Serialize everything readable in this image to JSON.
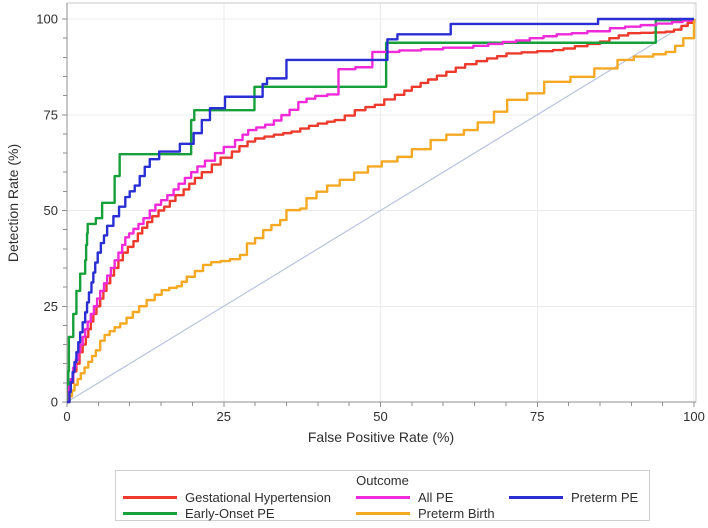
{
  "chart_data": {
    "type": "line",
    "subtype": "roc-step-curves",
    "title": "",
    "xlabel": "False Positive Rate (%)",
    "ylabel": "Detection Rate (%)",
    "xlim": [
      0,
      100
    ],
    "ylim": [
      0,
      100
    ],
    "x_ticks": [
      0,
      25,
      50,
      75,
      100
    ],
    "y_ticks": [
      0,
      25,
      50,
      75,
      100
    ],
    "minor_tick_step": 5,
    "grid": "major",
    "legend": {
      "title": "Outcome",
      "position": "bottom"
    },
    "reference_line": {
      "name": "chance-diagonal",
      "from": [
        0,
        0
      ],
      "to": [
        100,
        100
      ],
      "color": "#b9c3de"
    },
    "series": [
      {
        "name": "Gestational Hypertension",
        "color": "#ee3a2c",
        "points": [
          [
            0,
            0
          ],
          [
            0.3,
            3
          ],
          [
            0.6,
            5
          ],
          [
            1,
            8
          ],
          [
            1.5,
            10
          ],
          [
            2,
            13
          ],
          [
            2.5,
            15
          ],
          [
            3,
            17
          ],
          [
            3.4,
            19
          ],
          [
            3.8,
            21
          ],
          [
            4.2,
            23
          ],
          [
            4.7,
            25
          ],
          [
            5.3,
            27
          ],
          [
            5.8,
            29
          ],
          [
            6.3,
            31
          ],
          [
            6.9,
            33
          ],
          [
            7.5,
            35
          ],
          [
            8.2,
            37
          ],
          [
            8.9,
            39
          ],
          [
            9.7,
            40.5
          ],
          [
            10.6,
            42
          ],
          [
            11.3,
            44
          ],
          [
            12,
            45.5
          ],
          [
            12.8,
            47
          ],
          [
            13.6,
            48.5
          ],
          [
            14.6,
            50
          ],
          [
            15.5,
            51
          ],
          [
            16.4,
            52.5
          ],
          [
            17.3,
            54
          ],
          [
            18.6,
            55.5
          ],
          [
            19.5,
            57
          ],
          [
            20.4,
            58.5
          ],
          [
            21.5,
            60
          ],
          [
            23.1,
            62
          ],
          [
            24.5,
            63.8
          ],
          [
            26.3,
            65.4
          ],
          [
            27.5,
            66.8
          ],
          [
            28.8,
            68
          ],
          [
            30,
            68.8
          ],
          [
            31.5,
            69.3
          ],
          [
            33,
            69.8
          ],
          [
            34.5,
            70.2
          ],
          [
            35.8,
            70.6
          ],
          [
            37.2,
            71.4
          ],
          [
            38.6,
            72.1
          ],
          [
            40,
            72.7
          ],
          [
            41.5,
            73.2
          ],
          [
            42.7,
            73.6
          ],
          [
            44.3,
            74.8
          ],
          [
            45.9,
            76.2
          ],
          [
            47.6,
            77
          ],
          [
            49.1,
            77.6
          ],
          [
            50.6,
            79
          ],
          [
            52.3,
            80.2
          ],
          [
            53.8,
            81.3
          ],
          [
            55,
            82.3
          ],
          [
            56.4,
            83.3
          ],
          [
            57.6,
            84.2
          ],
          [
            59,
            85.2
          ],
          [
            60.5,
            86.2
          ],
          [
            62,
            87.3
          ],
          [
            63.5,
            88.2
          ],
          [
            65.3,
            89
          ],
          [
            67,
            89.7
          ],
          [
            68.6,
            90.3
          ],
          [
            70.1,
            91
          ],
          [
            72.5,
            91.3
          ],
          [
            75,
            91.6
          ],
          [
            77.5,
            91.9
          ],
          [
            79.2,
            92.3
          ],
          [
            81,
            92.9
          ],
          [
            83,
            93.5
          ],
          [
            85,
            94.1
          ],
          [
            86.5,
            95
          ],
          [
            88,
            95.7
          ],
          [
            89.5,
            96.3
          ],
          [
            91.5,
            96.4
          ],
          [
            93.5,
            96.5
          ],
          [
            95.5,
            96.7
          ],
          [
            96.8,
            97.2
          ],
          [
            98,
            98.2
          ],
          [
            99,
            99
          ],
          [
            100,
            100
          ]
        ]
      },
      {
        "name": "Early-Onset PE",
        "color": "#16a03a",
        "points": [
          [
            0,
            0
          ],
          [
            0.2,
            8
          ],
          [
            0.3,
            17
          ],
          [
            1,
            23
          ],
          [
            1.5,
            29
          ],
          [
            2.1,
            33.5
          ],
          [
            2.9,
            37
          ],
          [
            3.05,
            41
          ],
          [
            3.2,
            44
          ],
          [
            3.3,
            46.5
          ],
          [
            4.6,
            48
          ],
          [
            5.6,
            52
          ],
          [
            7.6,
            59
          ],
          [
            8.4,
            64.7
          ],
          [
            19.8,
            73.6
          ],
          [
            20.3,
            76.2
          ],
          [
            29.9,
            82.3
          ],
          [
            50.9,
            93.8
          ],
          [
            93.9,
            99.7
          ],
          [
            100,
            100
          ]
        ]
      },
      {
        "name": "All PE",
        "color": "#f02ad8",
        "points": [
          [
            0,
            0
          ],
          [
            0.3,
            4
          ],
          [
            0.6,
            6
          ],
          [
            1,
            9
          ],
          [
            1.4,
            11
          ],
          [
            1.8,
            13
          ],
          [
            2.1,
            15
          ],
          [
            2.5,
            17
          ],
          [
            2.9,
            19
          ],
          [
            3.3,
            21
          ],
          [
            3.8,
            23
          ],
          [
            4.3,
            25
          ],
          [
            4.8,
            27
          ],
          [
            5.3,
            29
          ],
          [
            5.9,
            31
          ],
          [
            6.4,
            33
          ],
          [
            7,
            35
          ],
          [
            7.6,
            37
          ],
          [
            8.2,
            39
          ],
          [
            8.8,
            41
          ],
          [
            9.3,
            43
          ],
          [
            9.9,
            44
          ],
          [
            10.6,
            45.2
          ],
          [
            11.4,
            46.5
          ],
          [
            12.2,
            48
          ],
          [
            13.2,
            50
          ],
          [
            14.1,
            51.5
          ],
          [
            15,
            52.7
          ],
          [
            16,
            54
          ],
          [
            17,
            55.5
          ],
          [
            17.8,
            57
          ],
          [
            18.8,
            58.5
          ],
          [
            19.8,
            60
          ],
          [
            20.8,
            61.5
          ],
          [
            22,
            63
          ],
          [
            23.6,
            65
          ],
          [
            25,
            66.6
          ],
          [
            26.8,
            68.4
          ],
          [
            28,
            69.8
          ],
          [
            28.9,
            71
          ],
          [
            30.2,
            71.7
          ],
          [
            31.6,
            72.4
          ],
          [
            33,
            73.5
          ],
          [
            34.2,
            74.9
          ],
          [
            35.5,
            76.3
          ],
          [
            36.9,
            78.3
          ],
          [
            38.2,
            79.2
          ],
          [
            39.6,
            79.9
          ],
          [
            41.5,
            80.3
          ],
          [
            43.3,
            86.9
          ],
          [
            46,
            87.4
          ],
          [
            48.7,
            91.4
          ],
          [
            53,
            91.8
          ],
          [
            56.5,
            92.1
          ],
          [
            60,
            92.5
          ],
          [
            64.8,
            93
          ],
          [
            67.2,
            93.5
          ],
          [
            69.5,
            94
          ],
          [
            71.6,
            94.4
          ],
          [
            73.8,
            95
          ],
          [
            76,
            95.5
          ],
          [
            78.1,
            96
          ],
          [
            80.5,
            96.3
          ],
          [
            83,
            96.8
          ],
          [
            86.6,
            97.6
          ],
          [
            89,
            98
          ],
          [
            91.5,
            98.4
          ],
          [
            94,
            98.8
          ],
          [
            96.5,
            99.2
          ],
          [
            98.2,
            99.6
          ],
          [
            100,
            100
          ]
        ]
      },
      {
        "name": "Preterm Birth",
        "color": "#f5a822",
        "points": [
          [
            0,
            0
          ],
          [
            0.4,
            1.5
          ],
          [
            0.8,
            3
          ],
          [
            1.2,
            4.5
          ],
          [
            1.7,
            6
          ],
          [
            2.2,
            7.5
          ],
          [
            2.8,
            9
          ],
          [
            3.4,
            10.5
          ],
          [
            4,
            12
          ],
          [
            4.6,
            13.5
          ],
          [
            5.3,
            16
          ],
          [
            6,
            17.5
          ],
          [
            6.8,
            18.5
          ],
          [
            7.6,
            19.5
          ],
          [
            8.5,
            20.5
          ],
          [
            9.5,
            22
          ],
          [
            10.5,
            23.5
          ],
          [
            11.5,
            25
          ],
          [
            12.7,
            26.6
          ],
          [
            14,
            28
          ],
          [
            15.1,
            29.2
          ],
          [
            16.3,
            29.8
          ],
          [
            17.5,
            30.2
          ],
          [
            18.3,
            31.4
          ],
          [
            19.1,
            32.7
          ],
          [
            20.4,
            34.2
          ],
          [
            21.7,
            35.8
          ],
          [
            23,
            36.5
          ],
          [
            24.5,
            36.8
          ],
          [
            26,
            37.3
          ],
          [
            27.6,
            38.4
          ],
          [
            28.7,
            41.4
          ],
          [
            30,
            42.8
          ],
          [
            31.3,
            44.9
          ],
          [
            32.6,
            46.2
          ],
          [
            34,
            47.5
          ],
          [
            35,
            50.1
          ],
          [
            37.2,
            50.5
          ],
          [
            38.2,
            53.2
          ],
          [
            39.8,
            54.9
          ],
          [
            41.5,
            56.5
          ],
          [
            43.5,
            58
          ],
          [
            45.8,
            59.9
          ],
          [
            48,
            61.5
          ],
          [
            50.2,
            62.8
          ],
          [
            52.7,
            64
          ],
          [
            55,
            66
          ],
          [
            58,
            68.4
          ],
          [
            60.5,
            69.8
          ],
          [
            63.3,
            71
          ],
          [
            65.5,
            73
          ],
          [
            68.1,
            75.8
          ],
          [
            70.2,
            78.9
          ],
          [
            73.4,
            80.6
          ],
          [
            76.1,
            83.6
          ],
          [
            80.3,
            84.9
          ],
          [
            84.1,
            87.1
          ],
          [
            87.8,
            89.3
          ],
          [
            90.4,
            90.2
          ],
          [
            93.5,
            90.8
          ],
          [
            95.5,
            91.4
          ],
          [
            97,
            93
          ],
          [
            98.3,
            95
          ],
          [
            100,
            100
          ]
        ]
      },
      {
        "name": "Preterm PE",
        "color": "#2a2fd4",
        "points": [
          [
            0,
            0
          ],
          [
            0.4,
            2.6
          ],
          [
            0.6,
            5.2
          ],
          [
            0.9,
            7.8
          ],
          [
            1.2,
            10.4
          ],
          [
            1.5,
            13
          ],
          [
            1.8,
            15.6
          ],
          [
            2.1,
            18.2
          ],
          [
            2.5,
            20.8
          ],
          [
            2.9,
            23.4
          ],
          [
            3.2,
            26
          ],
          [
            3.5,
            28.6
          ],
          [
            3.9,
            31.2
          ],
          [
            4.2,
            33.8
          ],
          [
            4.5,
            36.4
          ],
          [
            4.9,
            39
          ],
          [
            5.4,
            41.5
          ],
          [
            5.9,
            43.5
          ],
          [
            6.4,
            46
          ],
          [
            7.4,
            48.5
          ],
          [
            8.3,
            51
          ],
          [
            9.3,
            53.5
          ],
          [
            10,
            55
          ],
          [
            10.8,
            56.5
          ],
          [
            11.6,
            59
          ],
          [
            12.4,
            61.4
          ],
          [
            13.2,
            63.4
          ],
          [
            14.7,
            65.4
          ],
          [
            18,
            67.4
          ],
          [
            20.2,
            70.2
          ],
          [
            21.5,
            73.6
          ],
          [
            22.8,
            76.7
          ],
          [
            25.2,
            79.7
          ],
          [
            31.2,
            83
          ],
          [
            31.9,
            84.5
          ],
          [
            35,
            89.3
          ],
          [
            51.1,
            94.7
          ],
          [
            52.7,
            96
          ],
          [
            61.2,
            98.7
          ],
          [
            84.7,
            100
          ],
          [
            100,
            100
          ]
        ]
      }
    ]
  },
  "style": {
    "axis_color": "#8f8f8f",
    "grid_color": "#ebebeb",
    "frame_color": "#c9c9c9",
    "text_color": "#2f2f2f",
    "tick_font_px": 13
  }
}
